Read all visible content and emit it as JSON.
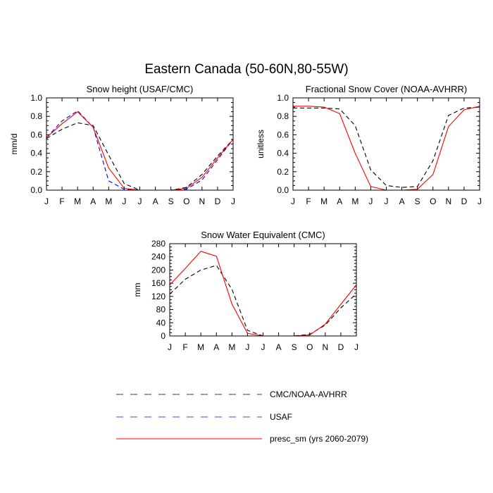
{
  "figure": {
    "title": "Eastern Canada (50-60N,80-55W)"
  },
  "legend": {
    "entries": [
      {
        "label": "CMC/NOAA-AVHRR",
        "color": "#000000",
        "dash": "dash"
      },
      {
        "label": "USAF",
        "color": "#0000ff",
        "dash": "dash"
      },
      {
        "label": "presc_sm (yrs 2060-2079)",
        "color": "#ff0000",
        "dash": "solid"
      }
    ]
  },
  "chart_data": [
    {
      "type": "line",
      "title": "Snow height (USAF/CMC)",
      "xlabel": "",
      "ylabel": "mm/d",
      "x": [
        "J",
        "F",
        "M",
        "A",
        "M",
        "J",
        "J",
        "A",
        "S",
        "O",
        "N",
        "D",
        "J"
      ],
      "ylim": [
        0,
        1.0
      ],
      "yticks": [
        0.0,
        0.2,
        0.4,
        0.6,
        0.8,
        1.0
      ],
      "ytick_labels": [
        "0.0",
        "0.2",
        "0.4",
        "0.6",
        "0.8",
        "1.0"
      ],
      "series": [
        {
          "key": "obs",
          "color": "#000000",
          "dash": "dash",
          "values": [
            0.56,
            0.66,
            0.73,
            0.7,
            0.38,
            0.07,
            0.0,
            0.0,
            0.0,
            0.03,
            0.17,
            0.37,
            0.55
          ]
        },
        {
          "key": "usaf",
          "color": "#0000ff",
          "dash": "dash",
          "values": [
            0.57,
            0.75,
            0.86,
            0.68,
            0.1,
            0.01,
            0.0,
            0.0,
            0.0,
            0.01,
            0.11,
            0.33,
            0.55
          ]
        },
        {
          "key": "model",
          "color": "#ff0000",
          "dash": "solid",
          "values": [
            0.57,
            0.72,
            0.85,
            0.68,
            0.24,
            0.02,
            0.0,
            0.0,
            0.0,
            0.02,
            0.14,
            0.35,
            0.55
          ]
        }
      ]
    },
    {
      "type": "line",
      "title": "Fractional Snow Cover (NOAA-AVHRR)",
      "xlabel": "",
      "ylabel": "unitless",
      "x": [
        "J",
        "F",
        "M",
        "A",
        "M",
        "J",
        "J",
        "A",
        "S",
        "O",
        "N",
        "D",
        "J"
      ],
      "ylim": [
        0,
        1.0
      ],
      "yticks": [
        0.0,
        0.2,
        0.4,
        0.6,
        0.8,
        1.0
      ],
      "ytick_labels": [
        "0.0",
        "0.2",
        "0.4",
        "0.6",
        "0.8",
        "1.0"
      ],
      "series": [
        {
          "key": "obs",
          "color": "#000000",
          "dash": "dash",
          "values": [
            0.89,
            0.89,
            0.89,
            0.88,
            0.7,
            0.22,
            0.05,
            0.03,
            0.04,
            0.32,
            0.81,
            0.89,
            0.9
          ]
        },
        {
          "key": "model",
          "color": "#ff0000",
          "dash": "solid",
          "values": [
            0.91,
            0.91,
            0.9,
            0.83,
            0.4,
            0.04,
            0.0,
            0.0,
            0.01,
            0.17,
            0.69,
            0.87,
            0.91
          ]
        }
      ]
    },
    {
      "type": "line",
      "title": "Snow Water Equivalent (CMC)",
      "xlabel": "",
      "ylabel": "mm",
      "x": [
        "J",
        "F",
        "M",
        "A",
        "M",
        "J",
        "J",
        "A",
        "S",
        "O",
        "N",
        "D",
        "J"
      ],
      "ylim": [
        0,
        280
      ],
      "yticks": [
        0,
        40,
        80,
        120,
        160,
        200,
        240,
        280
      ],
      "ytick_labels": [
        "0",
        "40",
        "80",
        "120",
        "160",
        "200",
        "240",
        "280"
      ],
      "series": [
        {
          "key": "obs",
          "color": "#000000",
          "dash": "dash",
          "values": [
            127,
            172,
            200,
            214,
            142,
            17,
            0,
            0,
            0,
            5,
            33,
            85,
            128
          ]
        },
        {
          "key": "model",
          "color": "#ff0000",
          "dash": "solid",
          "values": [
            155,
            205,
            257,
            242,
            97,
            8,
            0,
            0,
            0,
            3,
            36,
            96,
            155
          ]
        }
      ]
    }
  ]
}
